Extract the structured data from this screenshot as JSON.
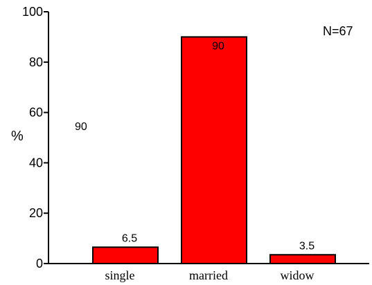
{
  "chart_data": {
    "type": "bar",
    "categories": [
      "single",
      "married",
      "widow"
    ],
    "values": [
      6.5,
      90,
      3.5
    ],
    "value_labels": [
      "6.5",
      "90",
      "3.5"
    ],
    "ylabel": "%",
    "ylim": [
      0,
      100
    ],
    "yticks": [
      0,
      20,
      40,
      60,
      80,
      100
    ],
    "annotations": [
      "N=67",
      "90"
    ],
    "bar_color": "#ff0000",
    "bar_edge_color": "#000000",
    "grid": false,
    "legend": "none"
  }
}
